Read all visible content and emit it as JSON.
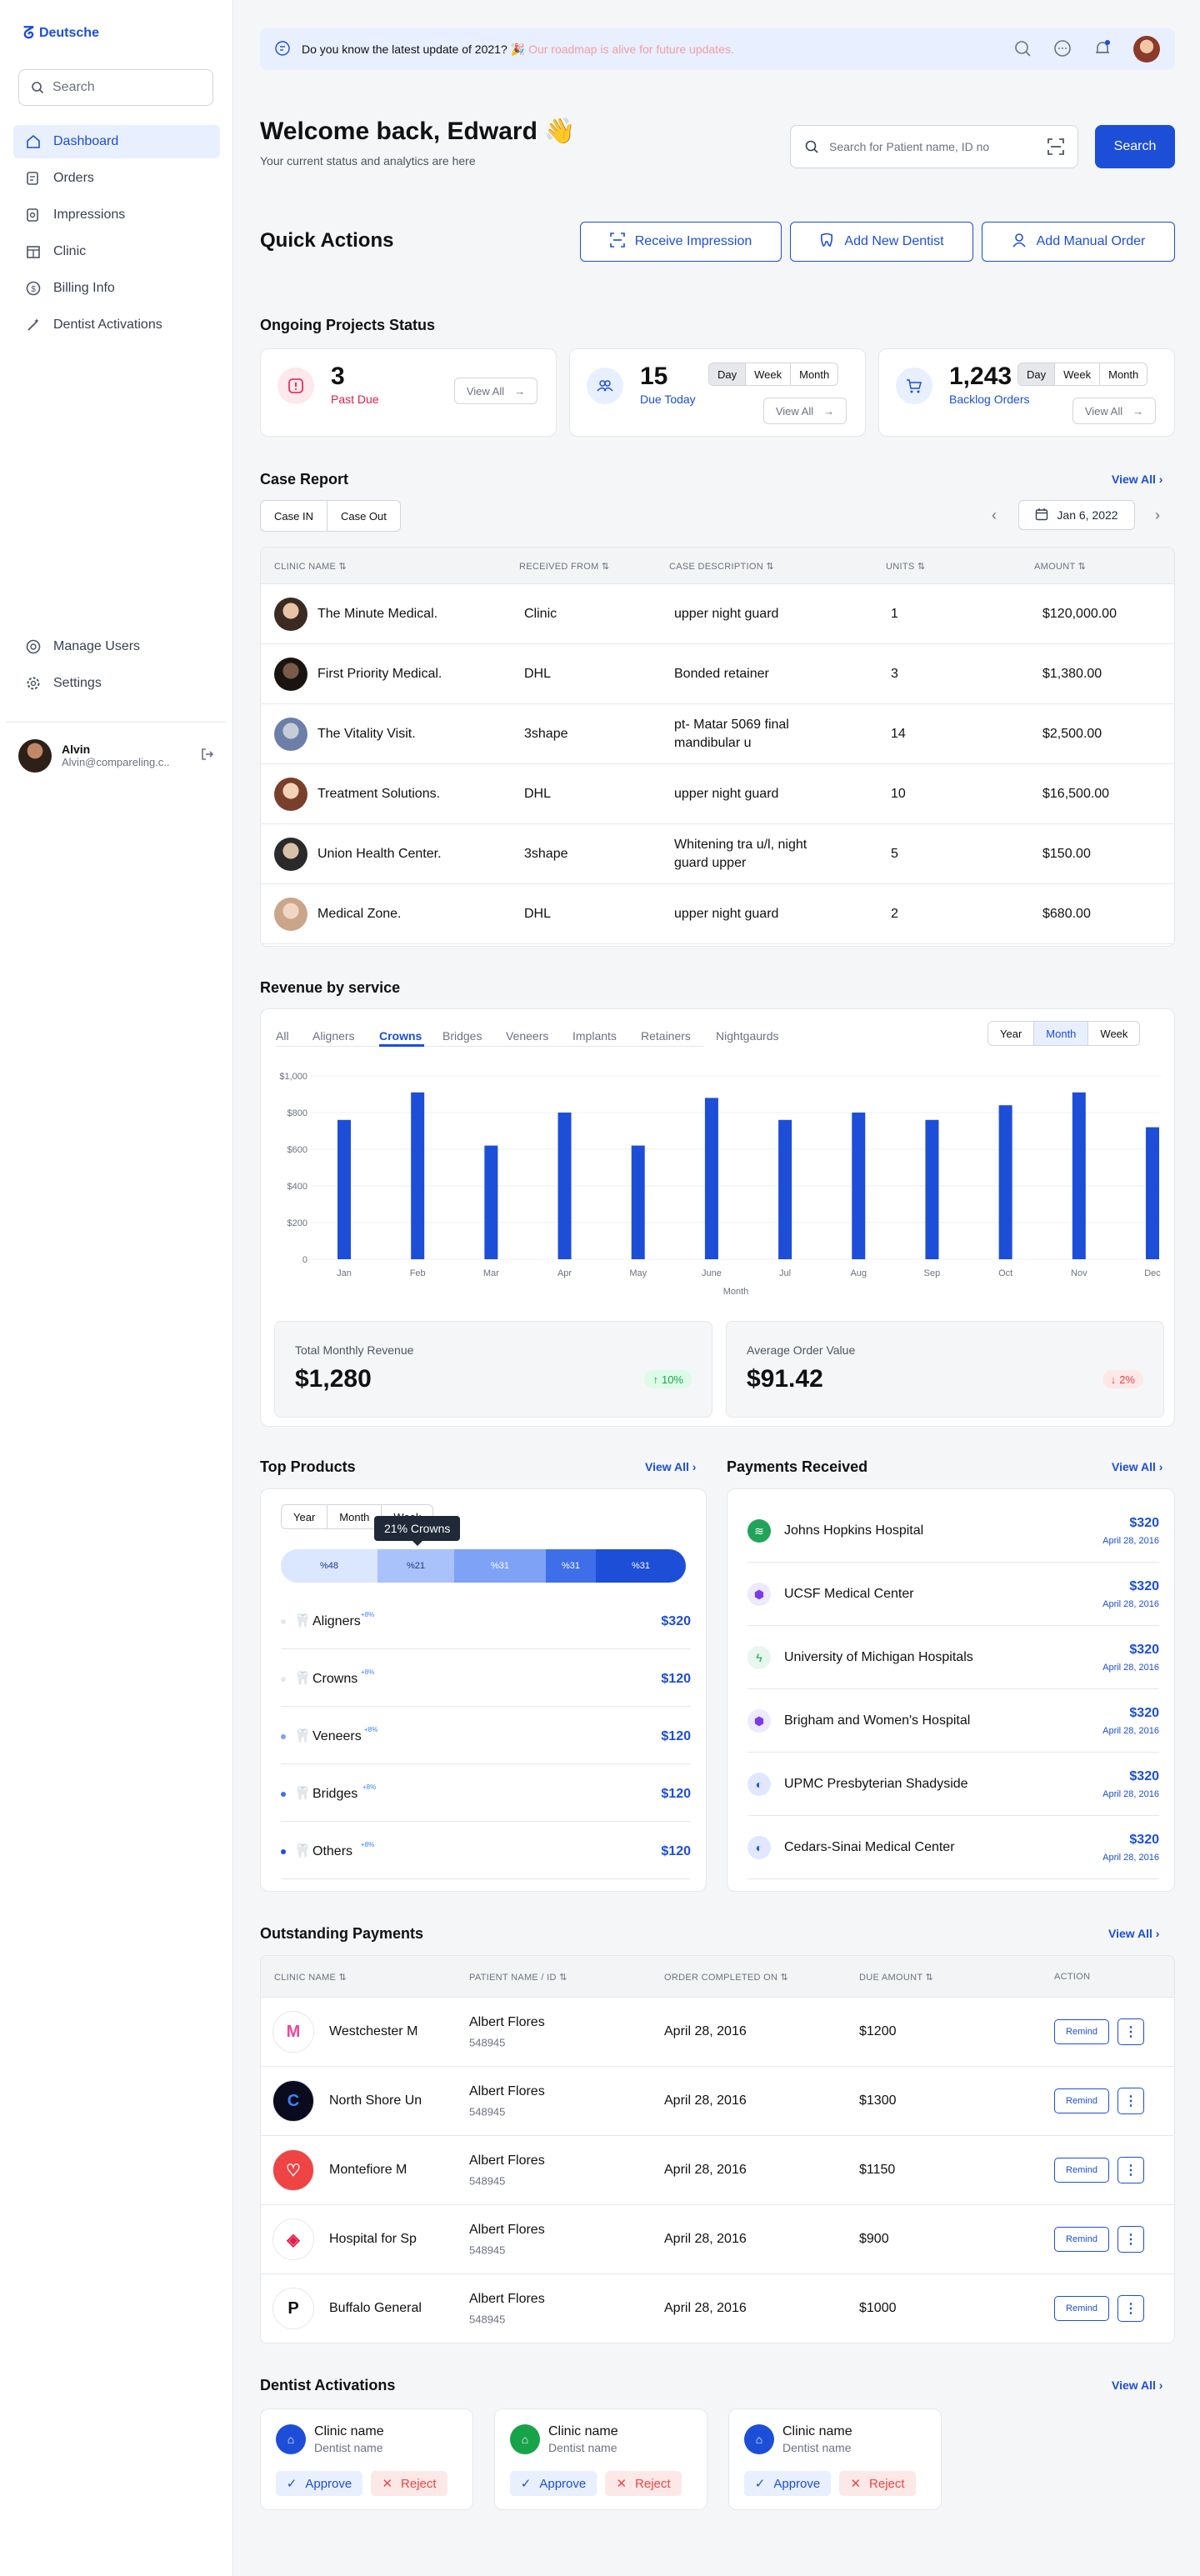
{
  "app": {
    "name": "Deutsche"
  },
  "sidebar": {
    "search_placeholder": "Search",
    "items": [
      {
        "label": "Dashboard"
      },
      {
        "label": "Orders"
      },
      {
        "label": "Impressions"
      },
      {
        "label": "Clinic"
      },
      {
        "label": "Billing Info"
      },
      {
        "label": "Dentist Activations"
      }
    ],
    "bottom_items": [
      {
        "label": "Manage Users"
      },
      {
        "label": "Settings"
      }
    ],
    "user": {
      "name": "Alvin",
      "email": "Alvin@compareling.c.."
    }
  },
  "topbar": {
    "message": "Do you know the latest update of 2021? 🎉",
    "message_link": "Our roadmap is alive for future updates."
  },
  "header": {
    "title": "Welcome back, Edward 👋",
    "subtitle": "Your current status and analytics are here",
    "search_placeholder": "Search for Patient name, ID no",
    "search_button": "Search"
  },
  "quick_actions": {
    "title": "Quick Actions",
    "buttons": [
      {
        "label": "Receive Impression"
      },
      {
        "label": "Add New Dentist"
      },
      {
        "label": "Add Manual Order"
      }
    ]
  },
  "ongoing": {
    "title": "Ongoing Projects Status",
    "view_all": "View All",
    "periods": [
      "Day",
      "Week",
      "Month"
    ],
    "cards": [
      {
        "value": "3",
        "label": "Past Due",
        "color": "#e11d48"
      },
      {
        "value": "15",
        "label": "Due Today",
        "color": "#1d4ed8"
      },
      {
        "value": "1,243",
        "label": "Backlog Orders",
        "color": "#1d4ed8"
      }
    ]
  },
  "case_report": {
    "title": "Case Report",
    "view_all": "View All",
    "tabs": [
      "Case IN",
      "Case Out"
    ],
    "date": "Jan 6, 2022",
    "columns": [
      "CLINIC NAME",
      "RECEIVED FROM",
      "CASE DESCRIPTION",
      "UNITS",
      "AMOUNT"
    ],
    "rows": [
      {
        "clinic": "The Minute Medical.",
        "from": "Clinic",
        "desc": "upper night guard",
        "units": "1",
        "amount": "$120,000.00"
      },
      {
        "clinic": "First Priority Medical.",
        "from": "DHL",
        "desc": "Bonded retainer",
        "units": "3",
        "amount": "$1,380.00"
      },
      {
        "clinic": "The Vitality Visit.",
        "from": "3shape",
        "desc": "pt- Matar 5069  final mandibular u",
        "units": "14",
        "amount": "$2,500.00"
      },
      {
        "clinic": "Treatment Solutions.",
        "from": "DHL",
        "desc": "upper night guard",
        "units": "10",
        "amount": "$16,500.00"
      },
      {
        "clinic": "Union Health Center.",
        "from": "3shape",
        "desc": "Whitening tra u/l, night guard upper",
        "units": "5",
        "amount": "$150.00"
      },
      {
        "clinic": "Medical Zone.",
        "from": "DHL",
        "desc": "upper night guard",
        "units": "2",
        "amount": "$680.00"
      }
    ]
  },
  "revenue": {
    "title": "Revenue by service",
    "tabs": [
      "All",
      "Aligners",
      "Crowns",
      "Bridges",
      "Veneers",
      "Implants",
      "Retainers",
      "Nightgaurds"
    ],
    "active_tab": "Crowns",
    "periods": [
      "Year",
      "Month",
      "Week"
    ],
    "active_period": "Month",
    "total_label": "Total Monthly Revenue",
    "total_value": "$1,280",
    "total_change": "10%",
    "avg_label": "Average Order Value",
    "avg_value": "$91.42",
    "avg_change": "2%"
  },
  "chart_data": {
    "type": "bar",
    "xlabel": "Month",
    "ylabel": "",
    "categories": [
      "Jan",
      "Feb",
      "Mar",
      "Apr",
      "May",
      "June",
      "Jul",
      "Aug",
      "Sep",
      "Oct",
      "Nov",
      "Dec"
    ],
    "values": [
      760,
      910,
      620,
      800,
      620,
      880,
      760,
      800,
      760,
      840,
      910,
      720
    ],
    "yticks": [
      "0",
      "$200",
      "$400",
      "$600",
      "$800",
      "$1,000"
    ],
    "ylim": [
      0,
      1000
    ],
    "color": "#1d4ed8"
  },
  "top_products": {
    "title": "Top Products",
    "view_all": "View All",
    "periods": [
      "Year",
      "Month",
      "Week"
    ],
    "tooltip": "21% Crowns",
    "segments": [
      "%48",
      "%21",
      "%31",
      "%31",
      "%31"
    ],
    "items": [
      {
        "name": "Aligners",
        "change": "+8%",
        "price": "$320"
      },
      {
        "name": "Crowns",
        "change": "+8%",
        "price": "$120"
      },
      {
        "name": "Veneers",
        "change": "+8%",
        "price": "$120"
      },
      {
        "name": "Bridges",
        "change": "+8%",
        "price": "$120"
      },
      {
        "name": "Others",
        "change": "+8%",
        "price": "$120"
      }
    ]
  },
  "payments_received": {
    "title": "Payments Received",
    "view_all": "View All",
    "items": [
      {
        "name": "Johns Hopkins Hospital",
        "amount": "$320",
        "date": "April 28, 2016"
      },
      {
        "name": "UCSF Medical Center",
        "amount": "$320",
        "date": "April 28, 2016"
      },
      {
        "name": "University of Michigan Hospitals",
        "amount": "$320",
        "date": "April 28, 2016"
      },
      {
        "name": "Brigham and Women's Hospital",
        "amount": "$320",
        "date": "April 28, 2016"
      },
      {
        "name": "UPMC Presbyterian Shadyside",
        "amount": "$320",
        "date": "April 28, 2016"
      },
      {
        "name": "Cedars-Sinai Medical Center",
        "amount": "$320",
        "date": "April 28, 2016"
      }
    ]
  },
  "outstanding": {
    "title": "Outstanding Payments",
    "view_all": "View All",
    "columns": [
      "CLINIC NAME",
      "PATIENT NAME / ID",
      "ORDER COMPLETED ON",
      "DUE AMOUNT",
      "ACTION"
    ],
    "remind_label": "Remind",
    "rows": [
      {
        "clinic": "Westchester M",
        "patient": "Albert Flores",
        "id": "548945",
        "date": "April 28, 2016",
        "due": "$1200"
      },
      {
        "clinic": "North Shore Un",
        "patient": "Albert Flores",
        "id": "548945",
        "date": "April 28, 2016",
        "due": "$1300"
      },
      {
        "clinic": "Montefiore M",
        "patient": "Albert Flores",
        "id": "548945",
        "date": "April 28, 2016",
        "due": "$1150"
      },
      {
        "clinic": "Hospital for Sp",
        "patient": "Albert Flores",
        "id": "548945",
        "date": "April 28, 2016",
        "due": "$900"
      },
      {
        "clinic": "Buffalo General",
        "patient": "Albert Flores",
        "id": "548945",
        "date": "April 28, 2016",
        "due": "$1000"
      }
    ]
  },
  "dentist_activations": {
    "title": "Dentist Activations",
    "view_all": "View All",
    "approve_label": "Approve",
    "reject_label": "Reject",
    "cards": [
      {
        "clinic": "Clinic name",
        "dentist": "Dentist name"
      },
      {
        "clinic": "Clinic name",
        "dentist": "Dentist name"
      },
      {
        "clinic": "Clinic name",
        "dentist": "Dentist name"
      }
    ]
  }
}
